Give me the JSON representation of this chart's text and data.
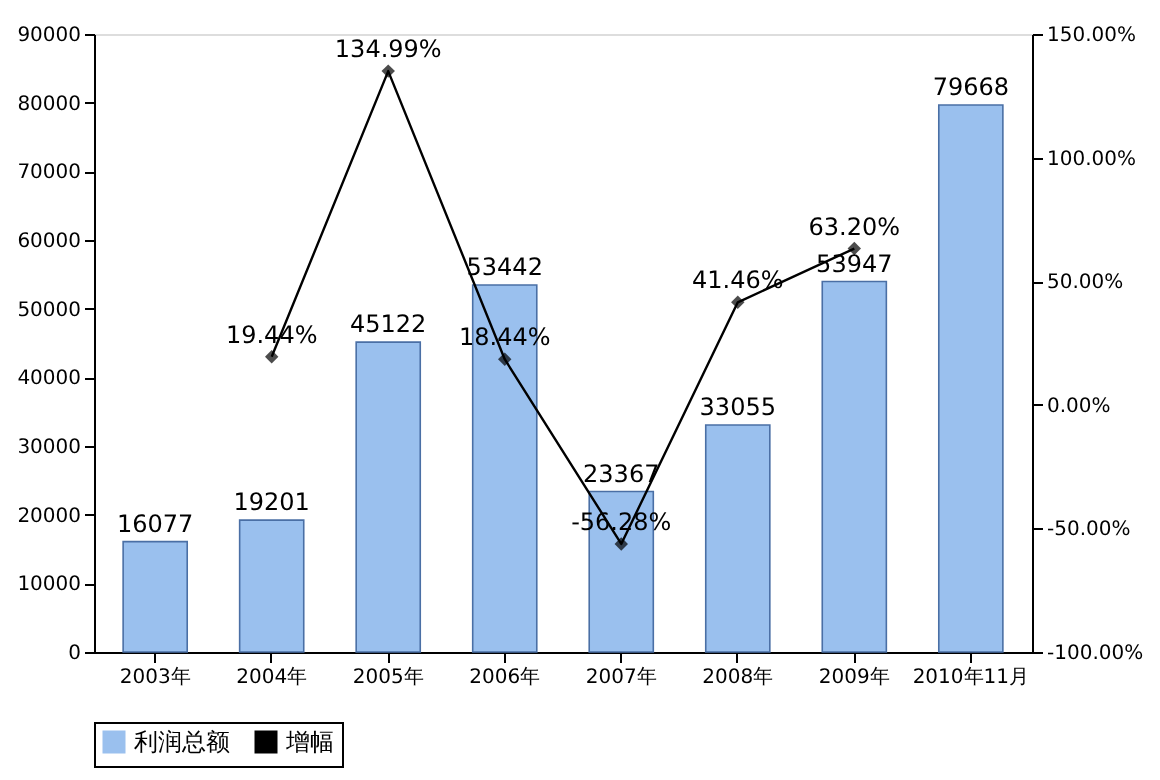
{
  "chart_data": {
    "type": "bar",
    "categories": [
      "2003年",
      "2004年",
      "2005年",
      "2006年",
      "2007年",
      "2008年",
      "2009年",
      "2010年11月"
    ],
    "series": [
      {
        "name": "利润总额",
        "color": "#9ac0ee",
        "values": [
          16077,
          19201,
          45122,
          53442,
          23367,
          33055,
          53947,
          79668
        ]
      },
      {
        "name": "增幅",
        "type": "line",
        "axis": "y2",
        "color": "#000000",
        "values": [
          null,
          19.44,
          134.99,
          18.44,
          -56.28,
          41.46,
          63.2,
          null
        ],
        "value_labels": [
          null,
          "19.44%",
          "134.99%",
          "18.44%",
          "-56.28%",
          "41.46%",
          "63.20%",
          null
        ]
      }
    ],
    "data_labels": true,
    "ylim": [
      0,
      90000
    ],
    "yticks": [
      0,
      10000,
      20000,
      30000,
      40000,
      50000,
      60000,
      70000,
      80000,
      90000
    ],
    "y2lim": [
      -100,
      150
    ],
    "y2ticks": [
      {
        "value": -100,
        "label": "-100.00%"
      },
      {
        "value": -50,
        "label": "-50.00%"
      },
      {
        "value": 0,
        "label": "0.00%"
      },
      {
        "value": 50,
        "label": "50.00%"
      },
      {
        "value": 100,
        "label": "100.00%"
      },
      {
        "value": 150,
        "label": "150.00%"
      }
    ],
    "grid": false,
    "legend": "bottom",
    "marker": "diamond",
    "line_style": "solid"
  }
}
